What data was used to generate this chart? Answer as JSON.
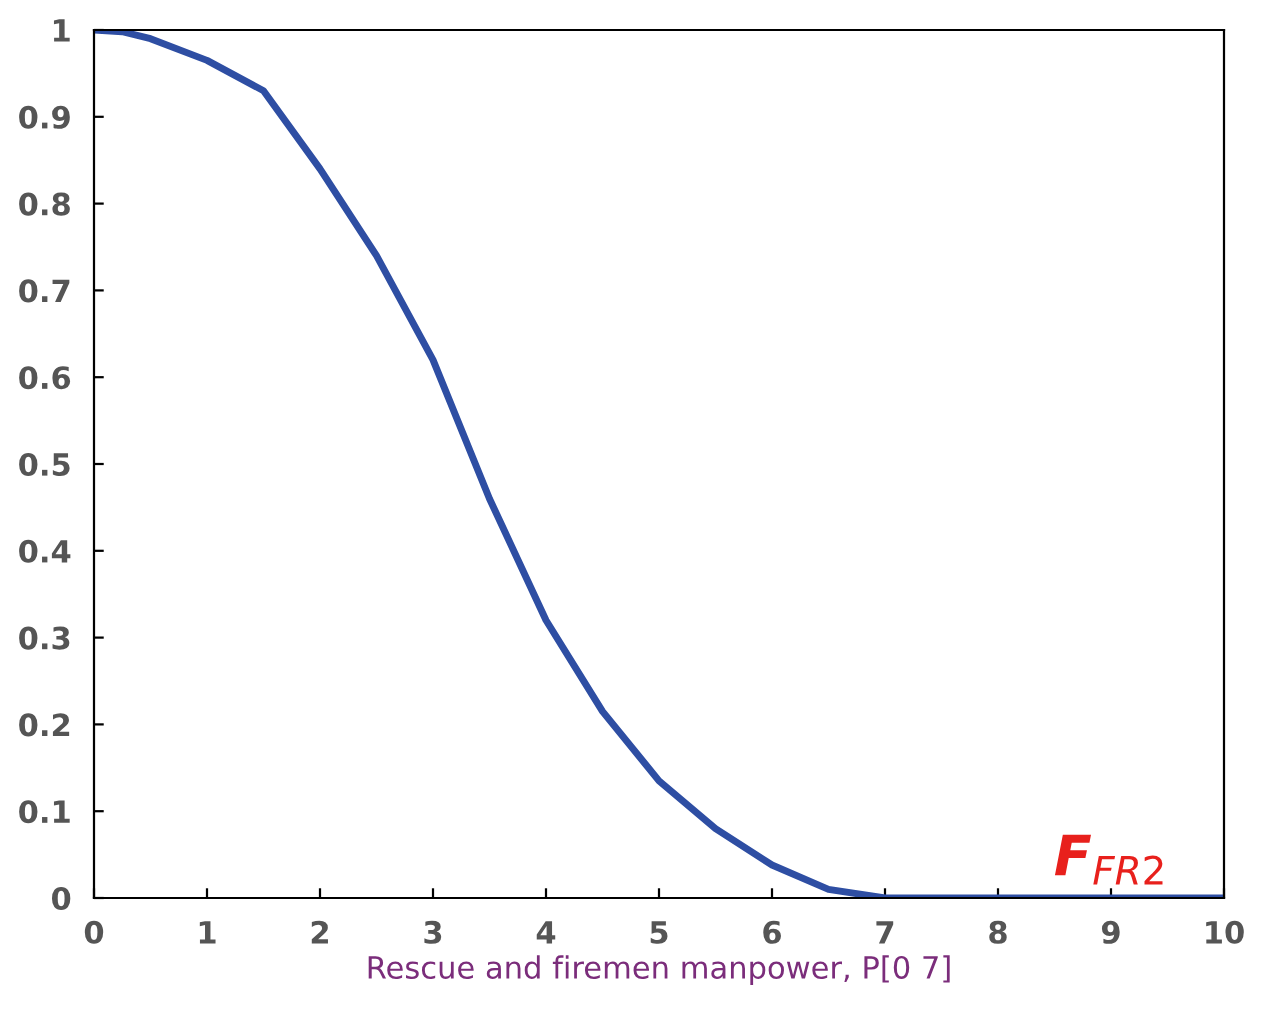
{
  "chart_data": {
    "type": "line",
    "xlabel": "Rescue and firemen manpower, P[0 7]",
    "x": [
      0,
      0.25,
      0.5,
      1,
      1.5,
      2,
      2.5,
      3,
      3.5,
      4,
      4.5,
      5,
      5.5,
      6,
      6.5,
      7,
      8,
      9,
      10
    ],
    "series": [
      {
        "color": "#2e4ea3",
        "values": [
          1.0,
          0.998,
          0.99,
          0.965,
          0.93,
          0.84,
          0.74,
          0.62,
          0.46,
          0.32,
          0.215,
          0.135,
          0.08,
          0.038,
          0.01,
          0,
          0,
          0,
          0
        ]
      }
    ],
    "annotations": [
      {
        "text": "F$_{FR2}$",
        "x": 9,
        "y": 0
      }
    ],
    "xlim": [
      0,
      10
    ],
    "ylim": [
      0,
      1
    ],
    "xticks": [
      0,
      1,
      2,
      3,
      4,
      5,
      6,
      7,
      8,
      9,
      10
    ],
    "yticks": [
      0,
      0.1,
      0.2,
      0.3,
      0.4,
      0.5,
      0.6,
      0.7,
      0.8,
      0.9,
      1
    ],
    "grid": false,
    "marker": "none",
    "line_style": "solid"
  }
}
